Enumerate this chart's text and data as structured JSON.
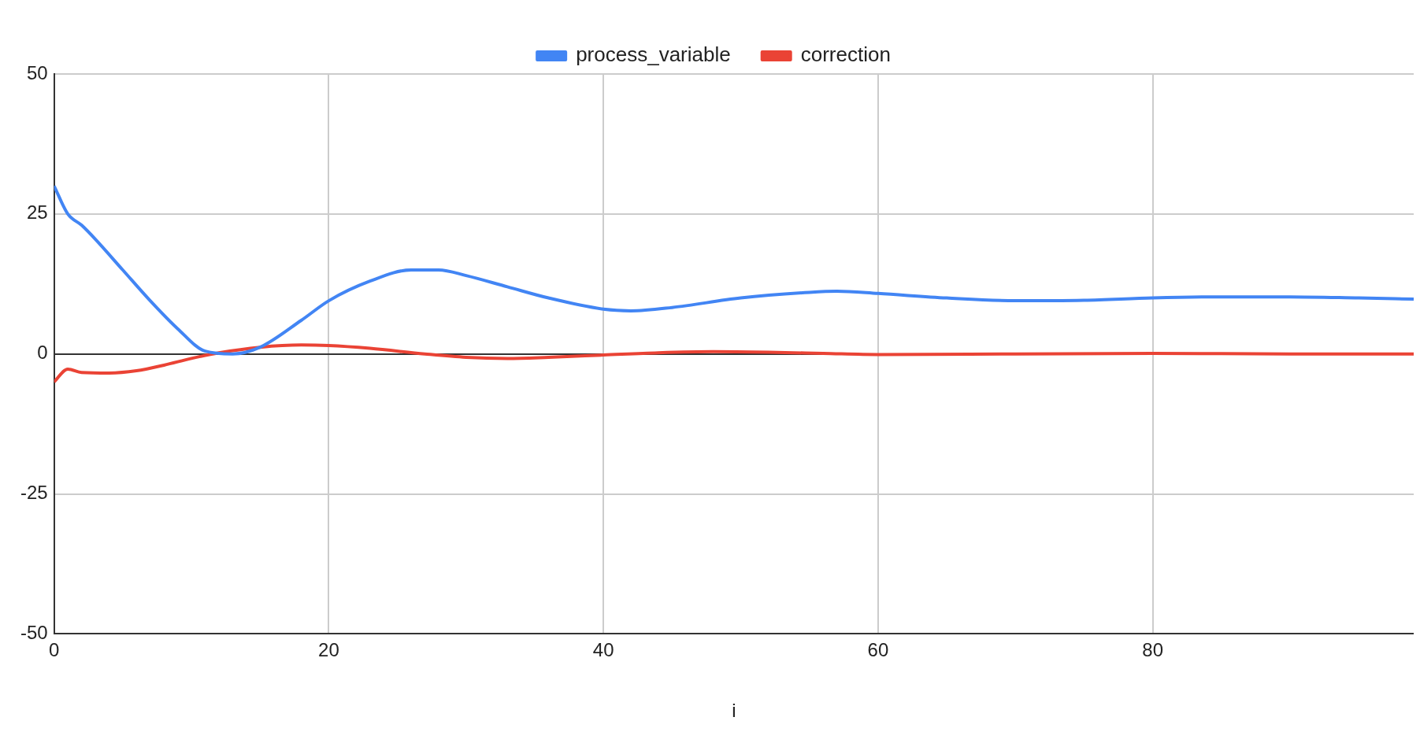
{
  "chart_data": {
    "type": "line",
    "xlabel": "i",
    "legend": "top",
    "grid": true,
    "marker": "none",
    "line_style": "solid",
    "xlim": [
      0,
      99
    ],
    "xticks": [
      0,
      20,
      40,
      60,
      80
    ],
    "ylim": [
      -50,
      50
    ],
    "yticks": [
      -50,
      -25,
      0,
      25,
      50
    ],
    "series": [
      {
        "name": "process_variable",
        "color": "#4285f4",
        "x": [
          0,
          1,
          2,
          3,
          5,
          7,
          9,
          11,
          13,
          15,
          18,
          20,
          23,
          26,
          28,
          30,
          33,
          36,
          40,
          42,
          45,
          50,
          55,
          57,
          60,
          65,
          70,
          75,
          80,
          85,
          90,
          95,
          99
        ],
        "values": [
          30,
          25,
          23,
          20.5,
          15,
          9.5,
          4.5,
          0.5,
          0,
          1.2,
          6,
          9.5,
          13,
          15,
          15,
          14,
          12,
          10,
          8,
          7.7,
          8.3,
          10,
          11,
          11.2,
          10.8,
          10,
          9.5,
          9.6,
          10,
          10.2,
          10.2,
          10,
          9.8
        ]
      },
      {
        "name": "correction",
        "color": "#ea4335",
        "x": [
          0,
          1,
          2,
          4,
          6,
          8,
          10,
          12,
          15,
          18,
          20,
          23,
          27,
          30,
          33,
          36,
          40,
          44,
          48,
          52,
          56,
          60,
          70,
          80,
          90,
          99
        ],
        "values": [
          -5,
          -2.7,
          -3.3,
          -3.4,
          -3,
          -2,
          -0.8,
          0.2,
          1.2,
          1.6,
          1.5,
          1,
          0,
          -0.6,
          -0.8,
          -0.6,
          -0.2,
          0.2,
          0.4,
          0.3,
          0.1,
          -0.1,
          0,
          0.1,
          0,
          0
        ]
      }
    ]
  }
}
